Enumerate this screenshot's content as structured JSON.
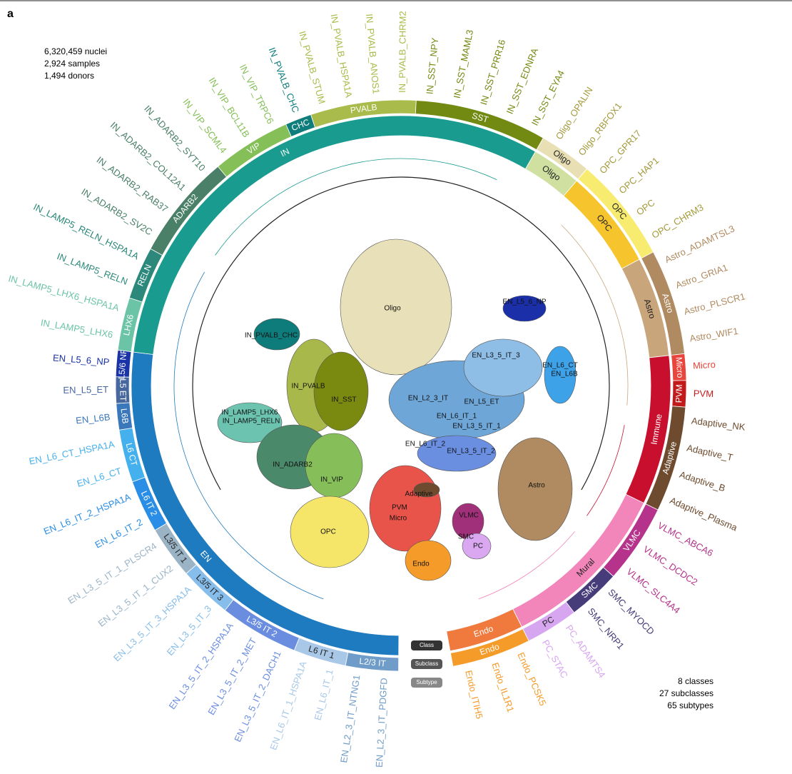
{
  "panel_label": "a",
  "stats_top": [
    "6,320,459 nuclei",
    "2,924 samples",
    "1,494 donors"
  ],
  "stats_bottom": [
    "8 classes",
    "27 subclasses",
    "65 subtypes"
  ],
  "ring_legend": [
    "Class",
    "Subclass",
    "Subtype"
  ],
  "classes": [
    {
      "label": "EN",
      "color": "#1f7bbf",
      "subclasses": [
        {
          "label": "L2/3 IT",
          "color": "#6f9cc8",
          "subtypes": [
            "EN_L2_3_IT_PDGFD",
            "EN_L2_3_IT_NTNG1"
          ]
        },
        {
          "label": "L6 IT 1",
          "color": "#a9c8e8",
          "subtypes": [
            "EN_L6_IT_1",
            "EN_L6_IT_1_HSPA1A"
          ]
        },
        {
          "label": "L3/5 IT 2",
          "color": "#6a8de0",
          "subtypes": [
            "EN_L3_5_IT_2_DACH1",
            "EN_L3_5_IT_2_MET",
            "EN_L3_5_IT_2_HSPA1A"
          ]
        },
        {
          "label": "L3/5 IT 3",
          "color": "#86bdea",
          "subtypes": [
            "EN_L3_5_IT_3",
            "EN_L3_5_IT_3_HSPA1A"
          ]
        },
        {
          "label": "L3/5 IT 1",
          "color": "#9ab4c6",
          "subtypes": [
            "EN_L3_5_IT_1_CUX2",
            "EN_L3_5_IT_1_PLSCR4"
          ]
        },
        {
          "label": "L6 IT 2",
          "color": "#2a8de6",
          "subtypes": [
            "EN_L6_IT_2",
            "EN_L6_IT_2_HSPA1A"
          ]
        },
        {
          "label": "L6 CT",
          "color": "#45b0ee",
          "subtypes": [
            "EN_L6_CT",
            "EN_L6_CT_HSPA1A"
          ]
        },
        {
          "label": "L6B",
          "color": "#3a78bb",
          "subtypes": [
            "EN_L6B"
          ]
        },
        {
          "label": "L5 ET",
          "color": "#47689f",
          "subtypes": [
            "EN_L5_ET"
          ]
        },
        {
          "label": "L5/6 NP",
          "color": "#1a33a6",
          "subtypes": [
            "EN_L5_6_NP"
          ]
        }
      ]
    },
    {
      "label": "IN",
      "color": "#1a9b8f",
      "subclasses": [
        {
          "label": "LHX6",
          "color": "#6cc4a6",
          "subtypes": [
            "IN_LAMP5_LHX6",
            "IN_LAMP5_LHX6_HSPA1A"
          ]
        },
        {
          "label": "RELN",
          "color": "#2b887a",
          "subtypes": [
            "IN_LAMP5_RELN",
            "IN_LAMP5_RELN_HSPA1A"
          ]
        },
        {
          "label": "ADARB2",
          "color": "#4a8068",
          "subtypes": [
            "IN_ADARB2_SV2C",
            "IN_ADARB2_RAB37",
            "IN_ADARB2_COL12A1",
            "IN_ADARB2_SYT10"
          ]
        },
        {
          "label": "VIP",
          "color": "#85bf57",
          "subtypes": [
            "IN_VIP_SCML4",
            "IN_VIP_BCL11B",
            "IN_VIP_TRPC6"
          ]
        },
        {
          "label": "CHC",
          "color": "#0f7d7c",
          "subtypes": [
            "IN_PVALB_CHC"
          ]
        },
        {
          "label": "PVALB",
          "color": "#a9bb4a",
          "subtypes": [
            "IN_PVALB_STUM",
            "IN_PVALB_HSPA1A",
            "IN_PVALB_ANOS1",
            "IN_PVALB_CHRM2"
          ]
        },
        {
          "label": "SST",
          "color": "#738a12",
          "subtypes": [
            "IN_SST_NPY",
            "IN_SST_MAML3",
            "IN_SST_PRR16",
            "IN_SST_EDNRA",
            "IN_SST_EYA4"
          ]
        }
      ]
    },
    {
      "label": "Oligo",
      "color": "#cfe0a0",
      "subclasses": [
        {
          "label": "Oligo",
          "color": "#e8dfb5",
          "subtypes": [
            "Oligo_OPALIN",
            "Oligo_RBFOX1"
          ]
        }
      ]
    },
    {
      "label": "OPC",
      "color": "#f6c52e",
      "subclasses": [
        {
          "label": "OPC",
          "color": "#f8ec70",
          "subtypes": [
            "OPC_GPR17",
            "OPC_HAP1",
            "OPC",
            "OPC_CHRM3"
          ]
        }
      ]
    },
    {
      "label": "Astro",
      "color": "#c9a57c",
      "subclasses": [
        {
          "label": "Astro",
          "color": "#b08a60",
          "subtypes": [
            "Astro_ADAMTSL3",
            "Astro_GRIA1",
            "Astro_PLSCR1",
            "Astro_WIF1"
          ]
        }
      ]
    },
    {
      "label": "Immune",
      "color": "#c8102e",
      "subclasses": [
        {
          "label": "Micro",
          "color": "#e8453c",
          "subtypes": [
            "Micro"
          ]
        },
        {
          "label": "PVM",
          "color": "#c21a1a",
          "subtypes": [
            "PVM"
          ]
        },
        {
          "label": "Adaptive",
          "color": "#6e4b2e",
          "subtypes": [
            "Adaptive_NK",
            "Adaptive_T",
            "Adaptive_B",
            "Adaptive_Plasma"
          ]
        }
      ]
    },
    {
      "label": "Mural",
      "color": "#f286ba",
      "subclasses": [
        {
          "label": "VLMC",
          "color": "#b5338a",
          "subtypes": [
            "VLMC_ABCA6",
            "VLMC_DCDC2",
            "VLMC_SLC4A4"
          ]
        },
        {
          "label": "SMC",
          "color": "#463c7a",
          "subtypes": [
            "SMC_MYOCD",
            "SMC_NRP1"
          ]
        },
        {
          "label": "PC",
          "color": "#d7a6f0",
          "subtypes": [
            "PC_ADAMTS4",
            "PC_STAC"
          ]
        }
      ]
    },
    {
      "label": "Endo",
      "color": "#f07a3e",
      "subclasses": [
        {
          "label": "Endo",
          "color": "#f59b2a",
          "subtypes": [
            "Endo_PCSK5",
            "Endo_IL1R1",
            "Endo_ITIH5"
          ]
        }
      ]
    }
  ],
  "umap_labels": [
    "Oligo",
    "EN_L5_6_NP",
    "IN_PVALB_CHC",
    "IN_PVALB",
    "IN_SST",
    "IN_LAMP5_LHX6",
    "IN_LAMP5_RELN",
    "IN_ADARB2",
    "IN_VIP",
    "OPC",
    "EN_L3_5_IT_3",
    "EN_L6_CT",
    "EN_L6B",
    "EN_L2_3_IT",
    "EN_L5_ET",
    "EN_L6_IT_1",
    "EN_L3_5_IT_1",
    "EN_L6_IT_2",
    "EN_L3_5_IT_2",
    "Adaptive",
    "PVM",
    "Micro",
    "VLMC",
    "SMC",
    "PC",
    "Endo",
    "Astro"
  ]
}
